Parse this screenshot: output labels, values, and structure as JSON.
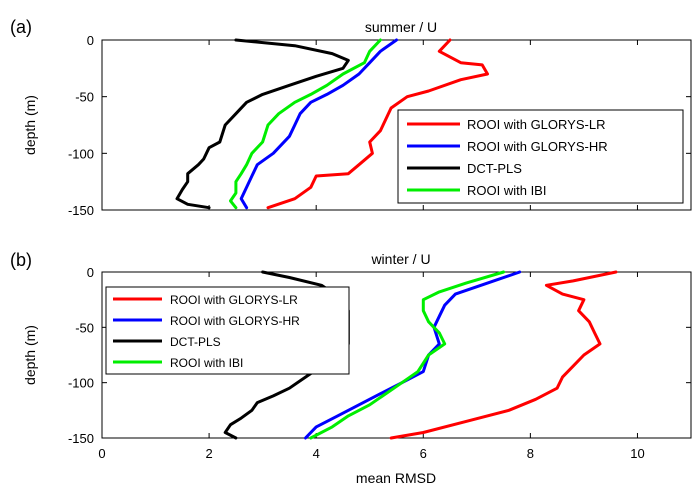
{
  "chart_data": [
    {
      "panel_label": "(a)",
      "type": "line",
      "title": "summer / U",
      "xlabel": "",
      "ylabel": "depth (m)",
      "xlim": [
        0,
        11
      ],
      "ylim": [
        -150,
        0
      ],
      "xticks": [
        0,
        2,
        4,
        6,
        8,
        10
      ],
      "yticks": [
        0,
        -50,
        -100,
        -150
      ],
      "xtick_labels_shown": false,
      "legend_placement": "right",
      "series": [
        {
          "name": "ROOI with GLORYS-LR",
          "color": "#ff0000",
          "points": [
            [
              6.5,
              0
            ],
            [
              6.3,
              -10
            ],
            [
              6.7,
              -20
            ],
            [
              7.1,
              -22
            ],
            [
              7.2,
              -30
            ],
            [
              6.7,
              -35
            ],
            [
              6.1,
              -45
            ],
            [
              5.7,
              -50
            ],
            [
              5.4,
              -60
            ],
            [
              5.3,
              -70
            ],
            [
              5.2,
              -80
            ],
            [
              5.0,
              -90
            ],
            [
              5.05,
              -100
            ],
            [
              4.8,
              -110
            ],
            [
              4.6,
              -118
            ],
            [
              4.0,
              -120
            ],
            [
              3.9,
              -130
            ],
            [
              3.6,
              -140
            ],
            [
              3.1,
              -148
            ]
          ]
        },
        {
          "name": "ROOI with GLORYS-HR",
          "color": "#0000ff",
          "points": [
            [
              5.5,
              0
            ],
            [
              5.2,
              -10
            ],
            [
              5.0,
              -20
            ],
            [
              4.8,
              -30
            ],
            [
              4.5,
              -40
            ],
            [
              4.2,
              -48
            ],
            [
              3.9,
              -55
            ],
            [
              3.7,
              -65
            ],
            [
              3.6,
              -75
            ],
            [
              3.5,
              -85
            ],
            [
              3.2,
              -100
            ],
            [
              2.9,
              -110
            ],
            [
              2.8,
              -120
            ],
            [
              2.7,
              -130
            ],
            [
              2.6,
              -140
            ],
            [
              2.7,
              -148
            ]
          ]
        },
        {
          "name": "DCT-PLS",
          "color": "#000000",
          "points": [
            [
              2.5,
              0
            ],
            [
              3.6,
              -5
            ],
            [
              4.3,
              -12
            ],
            [
              4.6,
              -18
            ],
            [
              4.5,
              -25
            ],
            [
              4.0,
              -32
            ],
            [
              3.5,
              -40
            ],
            [
              3.0,
              -48
            ],
            [
              2.7,
              -55
            ],
            [
              2.5,
              -65
            ],
            [
              2.3,
              -75
            ],
            [
              2.2,
              -90
            ],
            [
              2.0,
              -95
            ],
            [
              1.9,
              -105
            ],
            [
              1.8,
              -110
            ],
            [
              1.6,
              -118
            ],
            [
              1.6,
              -125
            ],
            [
              1.5,
              -132
            ],
            [
              1.4,
              -140
            ],
            [
              1.6,
              -145
            ],
            [
              2.0,
              -148
            ]
          ]
        },
        {
          "name": "ROOI with IBI",
          "color": "#00ee00",
          "points": [
            [
              5.2,
              0
            ],
            [
              5.0,
              -10
            ],
            [
              4.9,
              -20
            ],
            [
              4.5,
              -30
            ],
            [
              4.2,
              -40
            ],
            [
              3.9,
              -48
            ],
            [
              3.6,
              -55
            ],
            [
              3.3,
              -65
            ],
            [
              3.1,
              -75
            ],
            [
              3.0,
              -90
            ],
            [
              2.8,
              -100
            ],
            [
              2.7,
              -110
            ],
            [
              2.6,
              -118
            ],
            [
              2.5,
              -125
            ],
            [
              2.5,
              -135
            ],
            [
              2.4,
              -142
            ],
            [
              2.5,
              -148
            ]
          ]
        }
      ]
    },
    {
      "panel_label": "(b)",
      "type": "line",
      "title": "winter / U",
      "xlabel": "mean RMSD",
      "ylabel": "depth (m)",
      "xlim": [
        0,
        11
      ],
      "ylim": [
        -150,
        0
      ],
      "xticks": [
        0,
        2,
        4,
        6,
        8,
        10
      ],
      "yticks": [
        0,
        -50,
        -100,
        -150
      ],
      "xtick_labels_shown": true,
      "legend_placement": "top-left",
      "series": [
        {
          "name": "ROOI with GLORYS-LR",
          "color": "#ff0000",
          "points": [
            [
              9.6,
              0
            ],
            [
              8.8,
              -8
            ],
            [
              8.3,
              -12
            ],
            [
              8.6,
              -20
            ],
            [
              9.0,
              -25
            ],
            [
              8.9,
              -35
            ],
            [
              9.1,
              -45
            ],
            [
              9.2,
              -55
            ],
            [
              9.3,
              -65
            ],
            [
              9.0,
              -75
            ],
            [
              8.8,
              -85
            ],
            [
              8.6,
              -95
            ],
            [
              8.5,
              -105
            ],
            [
              8.1,
              -115
            ],
            [
              7.6,
              -125
            ],
            [
              6.8,
              -135
            ],
            [
              6.0,
              -145
            ],
            [
              5.4,
              -150
            ]
          ]
        },
        {
          "name": "ROOI with GLORYS-HR",
          "color": "#0000ff",
          "points": [
            [
              7.8,
              0
            ],
            [
              7.2,
              -10
            ],
            [
              6.6,
              -20
            ],
            [
              6.4,
              -30
            ],
            [
              6.3,
              -40
            ],
            [
              6.2,
              -50
            ],
            [
              6.3,
              -65
            ],
            [
              6.1,
              -75
            ],
            [
              6.0,
              -90
            ],
            [
              5.6,
              -100
            ],
            [
              5.2,
              -110
            ],
            [
              4.8,
              -120
            ],
            [
              4.4,
              -130
            ],
            [
              4.0,
              -140
            ],
            [
              3.8,
              -150
            ]
          ]
        },
        {
          "name": "DCT-PLS",
          "color": "#000000",
          "points": [
            [
              3.0,
              0
            ],
            [
              3.5,
              -5
            ],
            [
              4.1,
              -12
            ],
            [
              4.5,
              -25
            ],
            [
              4.6,
              -35
            ],
            [
              4.6,
              -50
            ],
            [
              4.6,
              -65
            ],
            [
              4.3,
              -75
            ],
            [
              4.1,
              -85
            ],
            [
              3.8,
              -95
            ],
            [
              3.5,
              -105
            ],
            [
              3.2,
              -112
            ],
            [
              2.9,
              -118
            ],
            [
              2.8,
              -125
            ],
            [
              2.6,
              -132
            ],
            [
              2.4,
              -138
            ],
            [
              2.3,
              -145
            ],
            [
              2.5,
              -150
            ]
          ]
        },
        {
          "name": "ROOI with IBI",
          "color": "#00ee00",
          "points": [
            [
              7.5,
              0
            ],
            [
              6.8,
              -10
            ],
            [
              6.3,
              -18
            ],
            [
              6.0,
              -25
            ],
            [
              6.0,
              -35
            ],
            [
              6.1,
              -45
            ],
            [
              6.3,
              -55
            ],
            [
              6.4,
              -65
            ],
            [
              6.1,
              -75
            ],
            [
              5.9,
              -90
            ],
            [
              5.6,
              -100
            ],
            [
              5.3,
              -110
            ],
            [
              5.0,
              -120
            ],
            [
              4.6,
              -130
            ],
            [
              4.3,
              -140
            ],
            [
              3.9,
              -150
            ]
          ]
        }
      ]
    }
  ]
}
